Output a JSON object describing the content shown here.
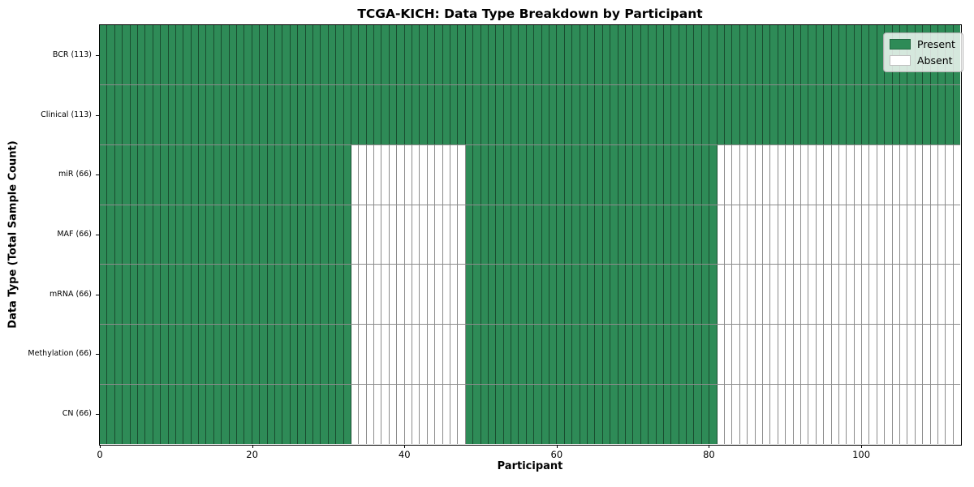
{
  "figure": {
    "title": "TCGA-KICH: Data Type Breakdown by Participant",
    "xlabel": "Participant",
    "ylabel": "Data Type (Total Sample Count)"
  },
  "legend": {
    "position": "upper right",
    "entries": [
      {
        "label": "Present",
        "color": "#2e8b57"
      },
      {
        "label": "Absent",
        "color": "#ffffff"
      }
    ]
  },
  "chart_data": {
    "type": "heatmap",
    "title": "TCGA-KICH: Data Type Breakdown by Participant",
    "xlabel": "Participant",
    "ylabel": "Data Type (Total Sample Count)",
    "x_range": [
      0,
      113
    ],
    "n_participants": 113,
    "x_ticks": [
      0,
      20,
      40,
      60,
      80,
      100
    ],
    "legend_position": "upper right",
    "grid": "cell-borders",
    "colors": {
      "present": "#2e8b57",
      "absent": "#ffffff",
      "cell_border": "rgba(0,0,0,0.45)"
    },
    "value_labels": [
      "Present",
      "Absent"
    ],
    "rows": [
      {
        "label": "BCR (113)",
        "data_type": "BCR",
        "total_samples": 113,
        "present_segments": [
          [
            0,
            113
          ]
        ],
        "absent_segments": []
      },
      {
        "label": "Clinical (113)",
        "data_type": "Clinical",
        "total_samples": 113,
        "present_segments": [
          [
            0,
            113
          ]
        ],
        "absent_segments": []
      },
      {
        "label": "miR (66)",
        "data_type": "miR",
        "total_samples": 66,
        "present_segments": [
          [
            0,
            33
          ],
          [
            48,
            81
          ]
        ],
        "absent_segments": [
          [
            33,
            48
          ],
          [
            81,
            113
          ]
        ]
      },
      {
        "label": "MAF (66)",
        "data_type": "MAF",
        "total_samples": 66,
        "present_segments": [
          [
            0,
            33
          ],
          [
            48,
            81
          ]
        ],
        "absent_segments": [
          [
            33,
            48
          ],
          [
            81,
            113
          ]
        ]
      },
      {
        "label": "mRNA (66)",
        "data_type": "mRNA",
        "total_samples": 66,
        "present_segments": [
          [
            0,
            33
          ],
          [
            48,
            81
          ]
        ],
        "absent_segments": [
          [
            33,
            48
          ],
          [
            81,
            113
          ]
        ]
      },
      {
        "label": "Methylation (66)",
        "data_type": "Methylation",
        "total_samples": 66,
        "present_segments": [
          [
            0,
            33
          ],
          [
            48,
            81
          ]
        ],
        "absent_segments": [
          [
            33,
            48
          ],
          [
            81,
            113
          ]
        ]
      },
      {
        "label": "CN (66)",
        "data_type": "CN",
        "total_samples": 66,
        "present_segments": [
          [
            0,
            33
          ],
          [
            48,
            81
          ]
        ],
        "absent_segments": [
          [
            33,
            48
          ],
          [
            81,
            113
          ]
        ]
      }
    ]
  }
}
